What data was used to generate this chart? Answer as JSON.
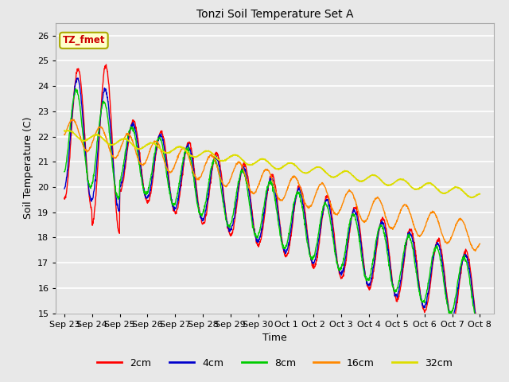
{
  "title": "Tonzi Soil Temperature Set A",
  "xlabel": "Time",
  "ylabel": "Soil Temperature (C)",
  "ylim": [
    15.0,
    26.5
  ],
  "yticks": [
    15.0,
    16.0,
    17.0,
    18.0,
    19.0,
    20.0,
    21.0,
    22.0,
    23.0,
    24.0,
    25.0,
    26.0
  ],
  "xtick_labels": [
    "Sep 23",
    "Sep 24",
    "Sep 25",
    "Sep 26",
    "Sep 27",
    "Sep 28",
    "Sep 29",
    "Sep 30",
    "Oct 1",
    "Oct 2",
    "Oct 3",
    "Oct 4",
    "Oct 5",
    "Oct 6",
    "Oct 7",
    "Oct 8"
  ],
  "legend_labels": [
    "2cm",
    "4cm",
    "8cm",
    "16cm",
    "32cm"
  ],
  "line_colors": [
    "#ff0000",
    "#0000cc",
    "#00cc00",
    "#ff8800",
    "#dddd00"
  ],
  "annotation_text": "TZ_fmet",
  "annotation_color": "#cc0000",
  "annotation_bg": "#ffffcc",
  "annotation_border": "#aaaa00",
  "bg_color": "#e8e8e8",
  "grid_color": "#ffffff"
}
